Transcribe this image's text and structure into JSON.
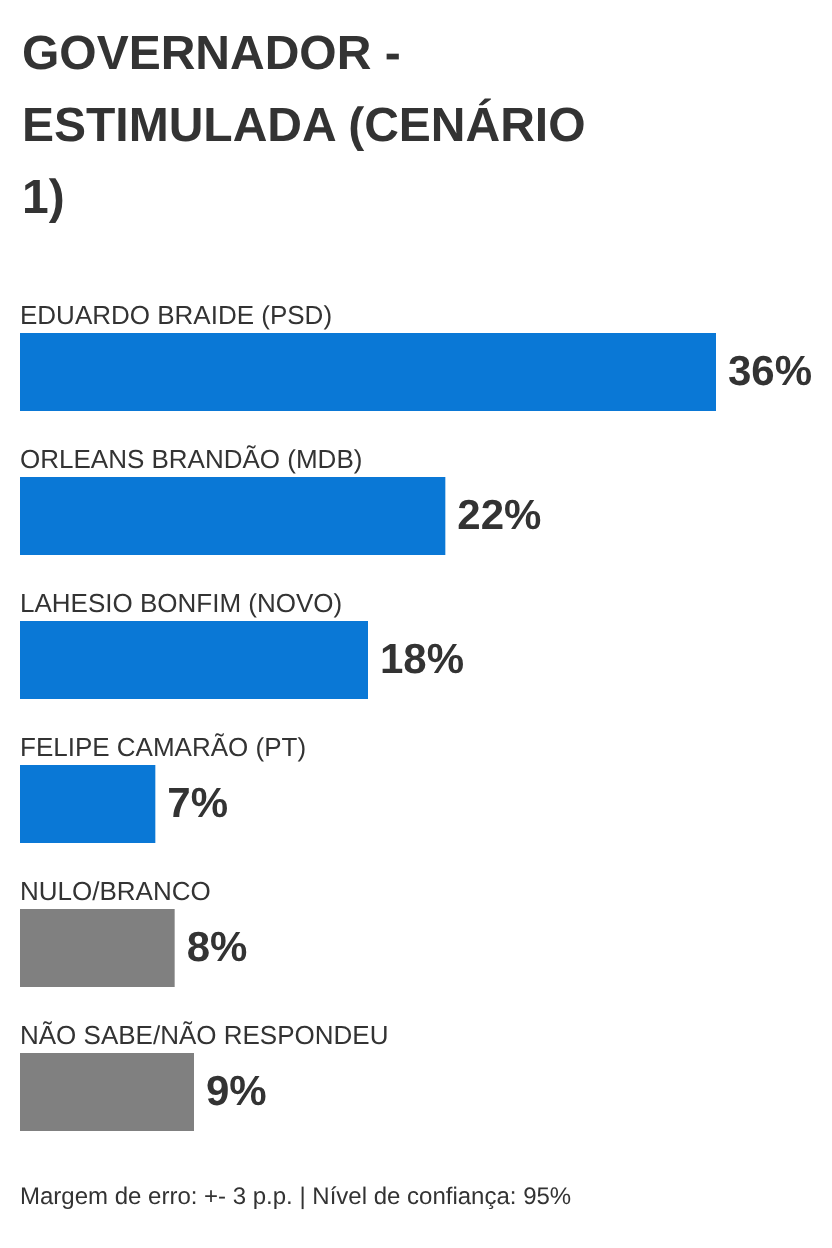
{
  "chart_data": {
    "type": "bar",
    "orientation": "horizontal",
    "title": "GOVERNADOR - ESTIMULADA (CENÁRIO 1)",
    "categories": [
      "EDUARDO BRAIDE (PSD)",
      "ORLEANS BRANDÃO (MDB)",
      "LAHESIO BONFIM (NOVO)",
      "FELIPE CAMARÃO (PT)",
      "NULO/BRANCO",
      "NÃO SABE/NÃO RESPONDEU"
    ],
    "values": [
      36,
      22,
      18,
      7,
      8,
      9
    ],
    "value_labels": [
      "36%",
      "22%",
      "18%",
      "7%",
      "8%",
      "9%"
    ],
    "colors": [
      "#0a78d6",
      "#0a78d6",
      "#0a78d6",
      "#0a78d6",
      "#808080",
      "#808080"
    ],
    "annotations": [
      "Margem de erro: +- 3 p.p. | Nível de confiança: 95%"
    ]
  }
}
